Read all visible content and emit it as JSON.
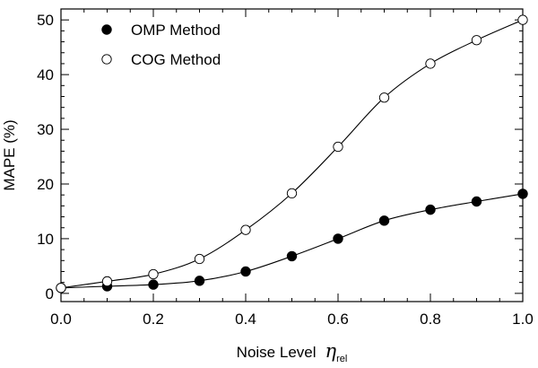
{
  "chart_data": {
    "type": "line",
    "title": "",
    "xlabel": "Noise Level",
    "xlabel_symbol": "η",
    "xlabel_subscript": "rel",
    "ylabel": "MAPE (%)",
    "xlim": [
      0.0,
      1.0
    ],
    "ylim": [
      -1.5,
      52
    ],
    "xticks": [
      0.0,
      0.2,
      0.4,
      0.6,
      0.8,
      1.0
    ],
    "xtick_labels": [
      "0.0",
      "0.2",
      "0.4",
      "0.6",
      "0.8",
      "1.0"
    ],
    "yticks": [
      0,
      10,
      20,
      30,
      40,
      50
    ],
    "ytick_labels": [
      "0",
      "10",
      "20",
      "30",
      "40",
      "50"
    ],
    "legend_position": "top-left",
    "x": [
      0.0,
      0.1,
      0.2,
      0.3,
      0.4,
      0.5,
      0.6,
      0.7,
      0.8,
      0.9,
      1.0
    ],
    "series": [
      {
        "name": "OMP Method",
        "marker": "filled-circle",
        "values": [
          1.0,
          1.3,
          1.6,
          2.3,
          4.0,
          6.8,
          10.0,
          13.3,
          15.3,
          16.8,
          18.2
        ]
      },
      {
        "name": "COG Method",
        "marker": "open-circle",
        "values": [
          1.0,
          2.2,
          3.5,
          6.3,
          11.6,
          18.3,
          26.8,
          35.8,
          42.0,
          46.3,
          50.0
        ]
      }
    ]
  }
}
